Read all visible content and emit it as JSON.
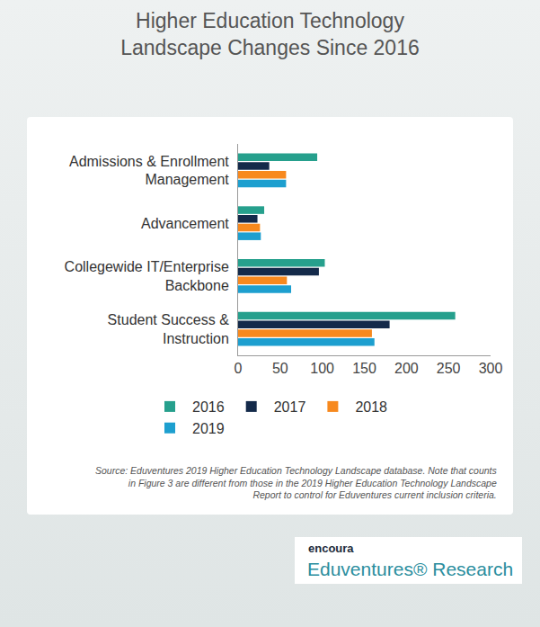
{
  "chart_data": {
    "type": "bar",
    "orientation": "horizontal",
    "title": "Higher Education Technology Landscape Changes Since 2016",
    "categories": [
      "Admissions & Enrollment Management",
      "Advancement",
      "Collegewide IT/Enterprise Backbone",
      "Student Success & Instruction"
    ],
    "series": [
      {
        "name": "2016",
        "color": "#26a08d",
        "values": [
          94,
          31,
          103,
          258
        ]
      },
      {
        "name": "2017",
        "color": "#142a4a",
        "values": [
          37,
          23,
          96,
          180
        ]
      },
      {
        "name": "2018",
        "color": "#f7891e",
        "values": [
          57,
          26,
          58,
          159
        ]
      },
      {
        "name": "2019",
        "color": "#1d9fcf",
        "values": [
          57,
          27,
          63,
          162
        ]
      }
    ],
    "xlim": [
      0,
      300
    ],
    "xticks": [
      0,
      50,
      100,
      150,
      200,
      250,
      300
    ],
    "grid": false,
    "legend": "bottom",
    "annotations": [
      "Source: Eduventures 2019 Higher Education Technology Landscape database. Note that counts in Figure 3 are different from those in the 2019 Higher Education Technology Landscape Report to control for Eduventures current inclusion criteria.",
      "encoura",
      "Eduventures® Research"
    ]
  }
}
